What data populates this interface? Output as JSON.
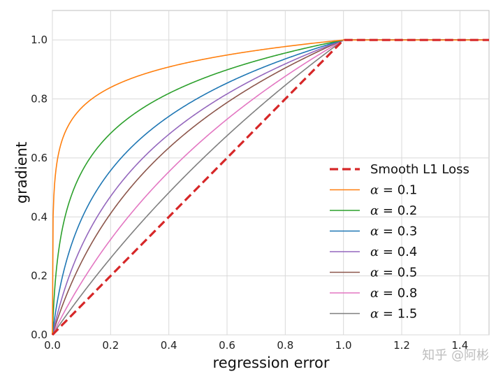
{
  "chart_data": {
    "type": "line",
    "xlabel": "regression error",
    "ylabel": "gradient",
    "xlim": [
      0,
      1.5
    ],
    "ylim": [
      0,
      1.1
    ],
    "xticks": [
      0.0,
      0.2,
      0.4,
      0.6,
      0.8,
      1.0,
      1.2,
      1.4
    ],
    "xtick_labels": [
      "0.0",
      "0.2",
      "0.4",
      "0.6",
      "0.8",
      "1.0",
      "1.2",
      "1.4"
    ],
    "yticks": [
      0.0,
      0.2,
      0.4,
      0.6,
      0.8,
      1.0
    ],
    "ytick_labels": [
      "0.0",
      "0.2",
      "0.4",
      "0.6",
      "0.8",
      "1.0"
    ],
    "grid": true,
    "legend_position": "center-right",
    "series": [
      {
        "name": "Smooth L1 Loss",
        "label_text": "Smooth L1 Loss",
        "color": "#d62728",
        "style": "dashed",
        "alpha": null
      },
      {
        "name": "α = 0.1",
        "label_text": "0.1",
        "color": "#ff7f0e",
        "style": "solid",
        "alpha": 0.1
      },
      {
        "name": "α = 0.2",
        "label_text": "0.2",
        "color": "#2ca02c",
        "style": "solid",
        "alpha": 0.2
      },
      {
        "name": "α = 0.3",
        "label_text": "0.3",
        "color": "#1f77b4",
        "style": "solid",
        "alpha": 0.3
      },
      {
        "name": "α = 0.4",
        "label_text": "0.4",
        "color": "#9467bd",
        "style": "solid",
        "alpha": 0.4
      },
      {
        "name": "α = 0.5",
        "label_text": "0.5",
        "color": "#8c564b",
        "style": "solid",
        "alpha": 0.5
      },
      {
        "name": "α = 0.8",
        "label_text": "0.8",
        "color": "#e377c2",
        "style": "solid",
        "alpha": 0.8
      },
      {
        "name": "α = 1.5",
        "label_text": "1.5",
        "color": "#7f7f7f",
        "style": "solid",
        "alpha": 1.5
      }
    ]
  },
  "legend": {
    "alpha_symbol": "α",
    "equals": "="
  },
  "watermark": {
    "text": "知乎 @阿彬"
  }
}
